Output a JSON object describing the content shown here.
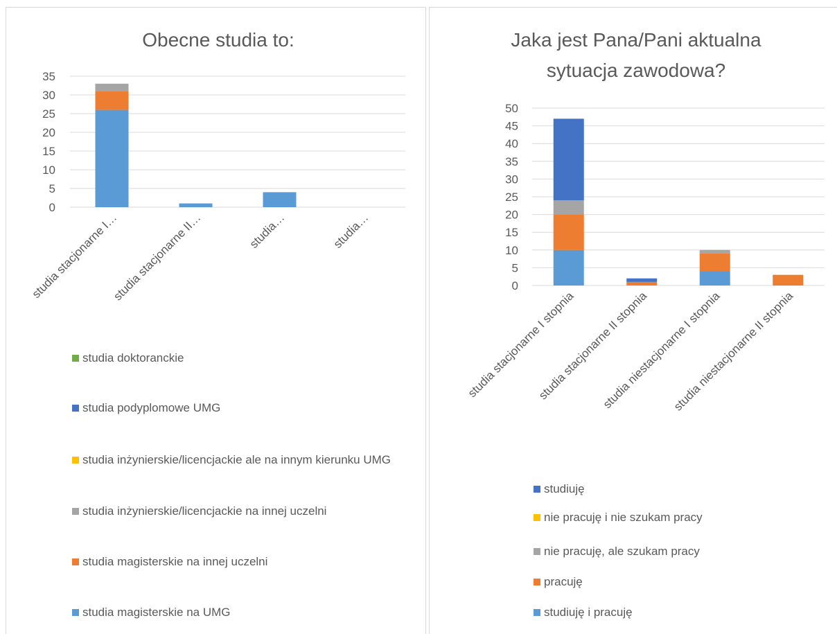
{
  "chart_data": [
    {
      "type": "bar",
      "stacked": true,
      "title": "Obecne studia to:",
      "categories": [
        "studia stacjonarne I…",
        "studia stacjonarne II…",
        "studia…",
        "studia…"
      ],
      "ylim": [
        0,
        35
      ],
      "yticks": [
        0,
        5,
        10,
        15,
        20,
        25,
        30,
        35
      ],
      "grid": true,
      "legend_position": "bottom",
      "series": [
        {
          "name": "studia magisterskie na UMG",
          "color": "#5b9bd5",
          "values": [
            26,
            1,
            4,
            0
          ]
        },
        {
          "name": "studia magisterskie na innej uczelni",
          "color": "#ed7d31",
          "values": [
            5,
            0,
            0,
            0
          ]
        },
        {
          "name": "studia inżynierskie/licencjackie na innej uczelni",
          "color": "#a5a5a5",
          "values": [
            2,
            0,
            0,
            0
          ]
        },
        {
          "name": "studia inżynierskie/licencjackie ale na innym kierunku UMG",
          "color": "#ffc000",
          "values": [
            0,
            0,
            0,
            0
          ]
        },
        {
          "name": "studia podyplomowe UMG",
          "color": "#4472c4",
          "values": [
            0,
            0,
            0,
            0
          ]
        },
        {
          "name": "studia doktoranckie",
          "color": "#70ad47",
          "values": [
            0,
            0,
            0,
            0
          ]
        }
      ]
    },
    {
      "type": "bar",
      "stacked": true,
      "title_lines": [
        "Jaka jest Pana/Pani aktualna",
        "sytuacja zawodowa?"
      ],
      "categories": [
        "studia stacjonarne I stopnia",
        "studia stacjonarne II stopnia",
        "studia niestacjonarne I stopnia",
        "studia niestacjonarne II stopnia"
      ],
      "ylim": [
        0,
        50
      ],
      "yticks": [
        0,
        5,
        10,
        15,
        20,
        25,
        30,
        35,
        40,
        45,
        50
      ],
      "grid": true,
      "legend_position": "bottom",
      "series": [
        {
          "name": "studiuję i pracuję",
          "color": "#5b9bd5",
          "values": [
            10,
            0,
            4,
            0
          ]
        },
        {
          "name": "pracuję",
          "color": "#ed7d31",
          "values": [
            10,
            1,
            5,
            3
          ]
        },
        {
          "name": "nie pracuję, ale szukam pracy",
          "color": "#a5a5a5",
          "values": [
            4,
            0,
            1,
            0
          ]
        },
        {
          "name": "nie pracuję i nie szukam pracy",
          "color": "#ffc000",
          "values": [
            0,
            0,
            0,
            0
          ]
        },
        {
          "name": "studiuję",
          "color": "#4472c4",
          "values": [
            23,
            1,
            0,
            0
          ]
        }
      ]
    }
  ]
}
